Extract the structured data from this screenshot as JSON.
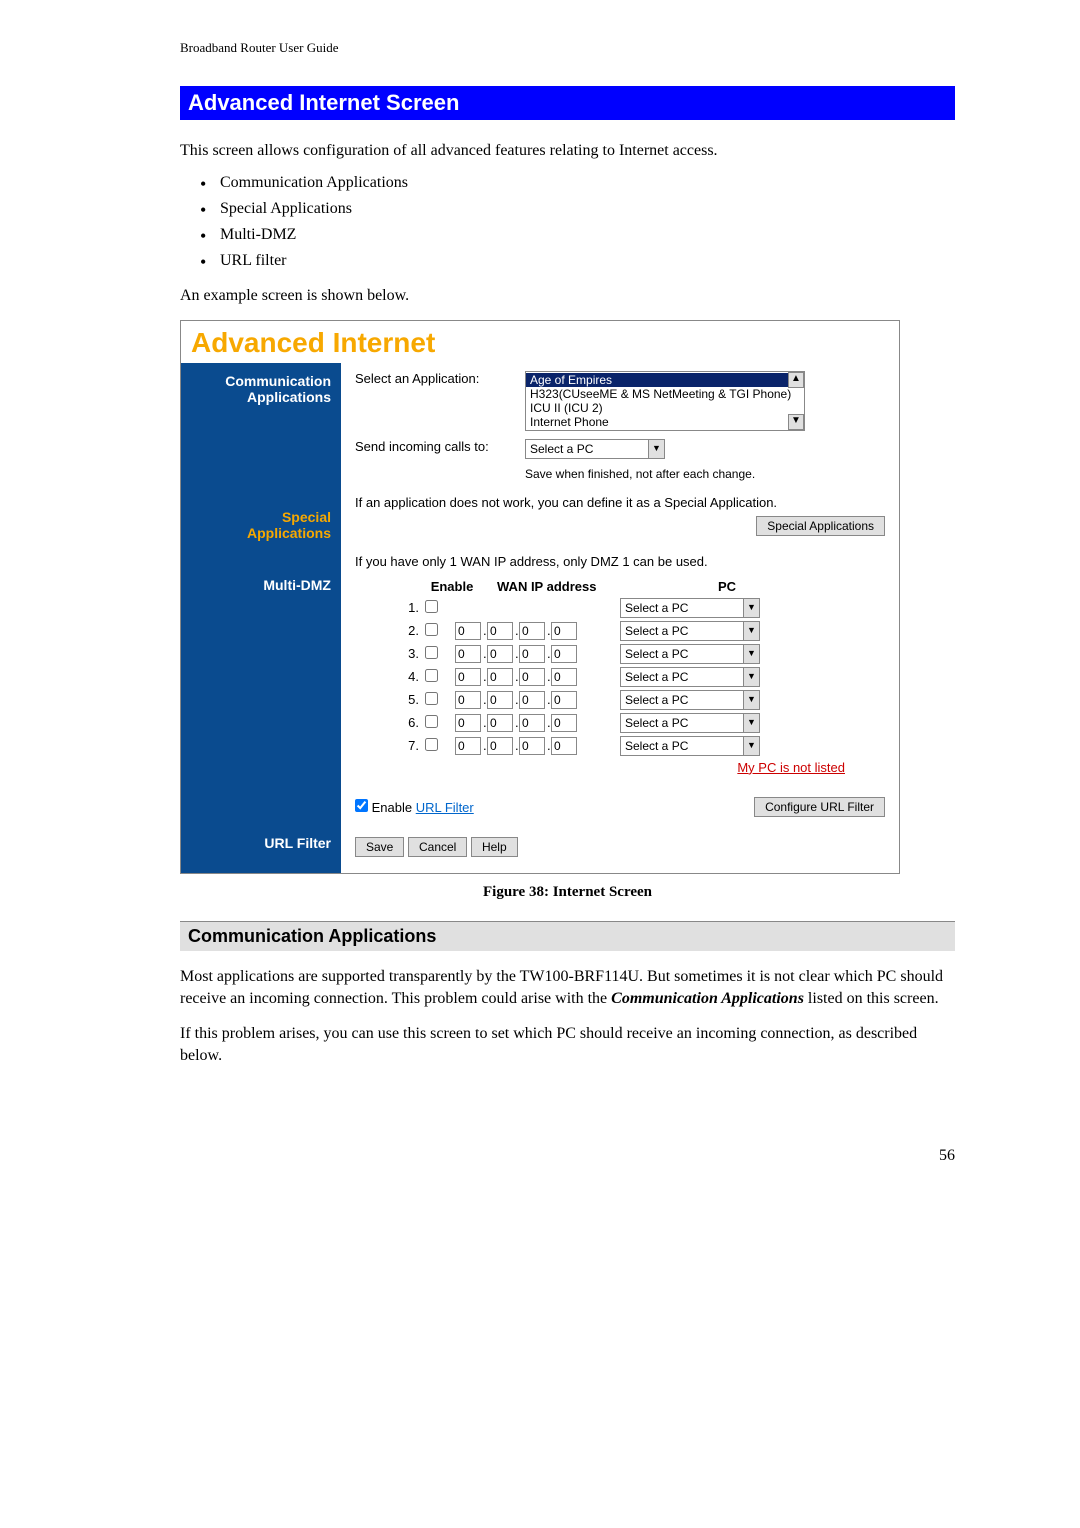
{
  "header": "Broadband Router User Guide",
  "section_title": "Advanced Internet Screen",
  "intro": "This screen allows configuration of all advanced features relating to Internet access.",
  "bullets": [
    "Communication Applications",
    "Special Applications",
    "Multi-DMZ",
    "URL filter"
  ],
  "example_text": "An example screen is shown below.",
  "screenshot": {
    "title": "Advanced Internet",
    "nav": {
      "comm1": "Communication",
      "comm2": "Applications",
      "special1": "Special",
      "special2": "Applications",
      "dmz": "Multi-DMZ",
      "url": "URL Filter"
    },
    "comm": {
      "select_label": "Select an Application:",
      "opts": [
        "Age of Empires",
        "H323(CUseeME & MS NetMeeting & TGI Phone)",
        "ICU II (ICU 2)",
        "Internet Phone"
      ],
      "send_label": "Send incoming calls to:",
      "send_value": "Select a PC",
      "save_note": "Save when finished, not after each change."
    },
    "special": {
      "text": "If an application does not work, you can define it as a Special Application.",
      "btn": "Special Applications"
    },
    "dmz": {
      "text": "If you have only 1 WAN IP address, only DMZ 1 can be used.",
      "col_enable": "Enable",
      "col_ip": "WAN IP address",
      "col_pc": "PC",
      "pc_value": "Select a PC",
      "link": "My PC is not listed"
    },
    "url": {
      "enable_label": "Enable ",
      "link_text": "URL Filter",
      "btn": "Configure URL Filter"
    },
    "buttons": {
      "save": "Save",
      "cancel": "Cancel",
      "help": "Help"
    }
  },
  "figure_caption": "Figure 38: Internet Screen",
  "subsection_title": "Communication Applications",
  "para1_a": "Most applications are supported transparently by the TW100-BRF114U. But sometimes it is not clear which PC should receive an incoming connection. This problem could arise with the ",
  "para1_b": "Communication Applications",
  "para1_c": " listed on this screen.",
  "para2": "If this problem arises, you can use this screen to set which PC should receive an incoming connection, as described below.",
  "page_num": "56"
}
